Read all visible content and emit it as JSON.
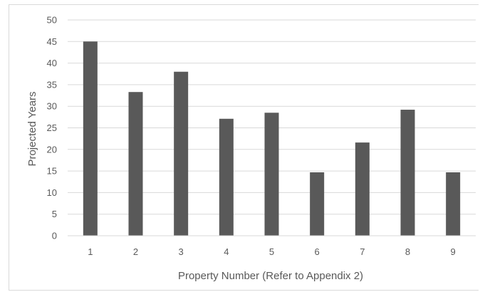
{
  "chart_data": {
    "type": "bar",
    "title": "",
    "xlabel": "Property Number (Refer to Appendix 2)",
    "ylabel": "Projected Years",
    "categories": [
      "1",
      "2",
      "3",
      "4",
      "5",
      "6",
      "7",
      "8",
      "9"
    ],
    "values": [
      45,
      33.3,
      38,
      27.1,
      28.5,
      14.7,
      21.6,
      29.2,
      14.7
    ],
    "ylim": [
      0,
      50
    ],
    "yticks": [
      "0",
      "5",
      "10",
      "15",
      "20",
      "25",
      "30",
      "35",
      "40",
      "45",
      "50"
    ],
    "grid": true,
    "legend": "none",
    "bar_color": "#595959",
    "grid_color": "#d9d9d9"
  }
}
